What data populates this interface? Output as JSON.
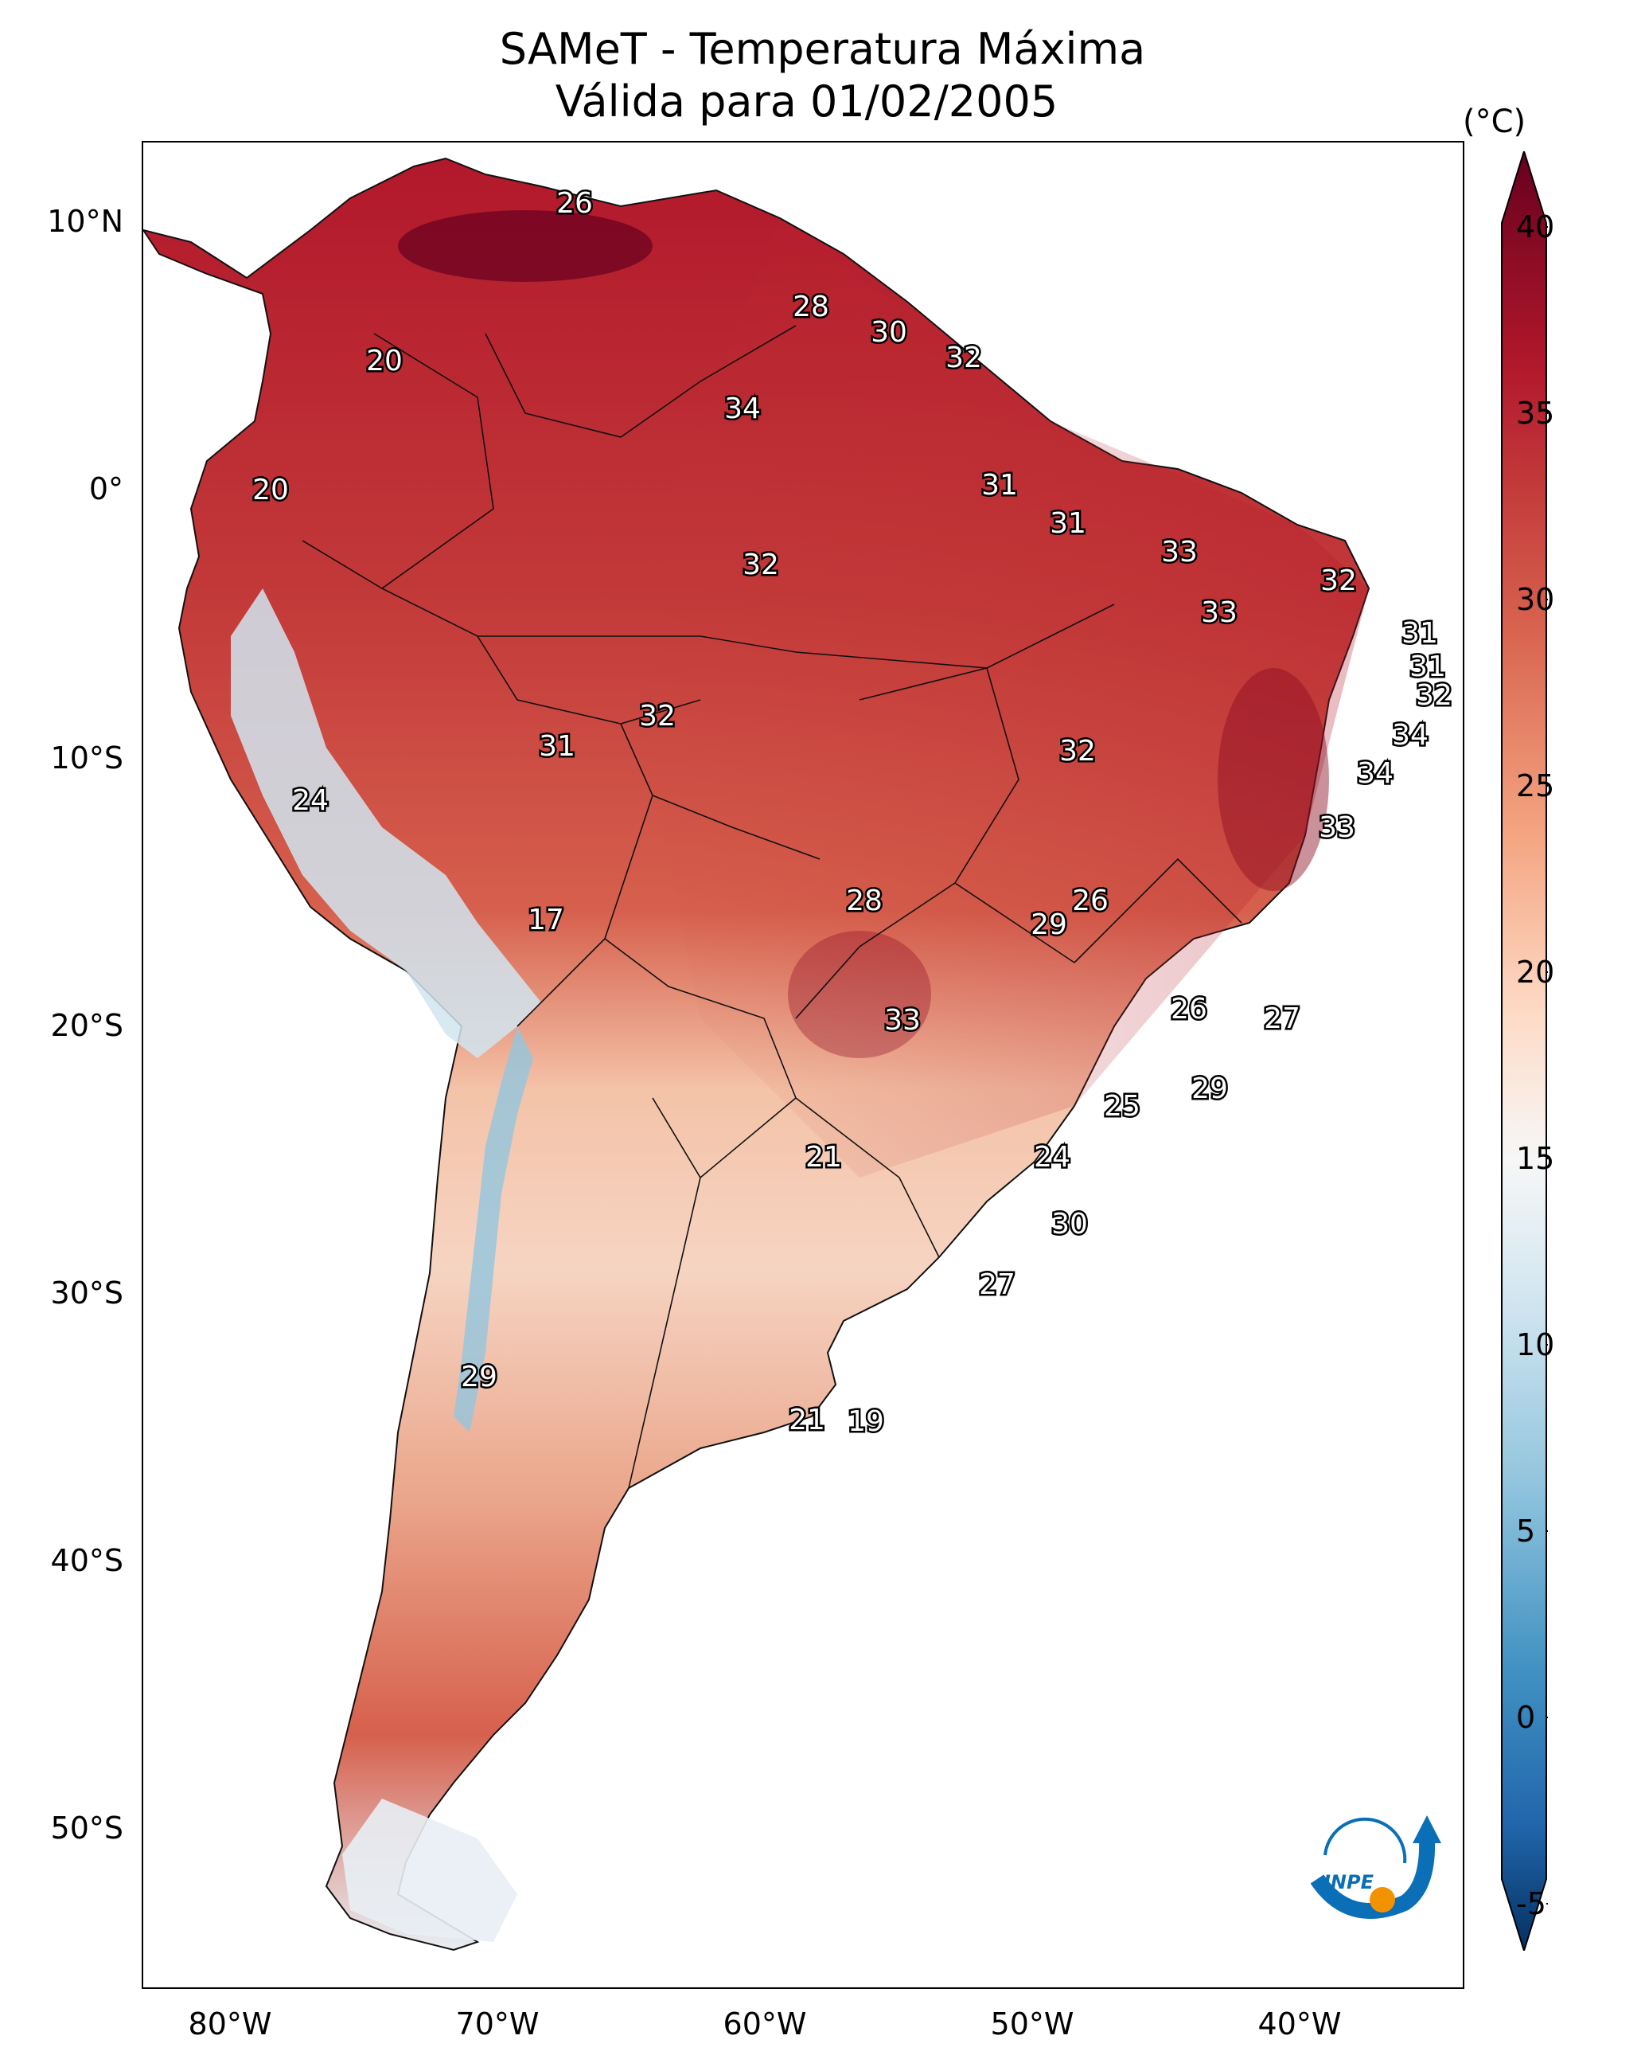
{
  "title": {
    "line1": "SAMeT - Temperatura Máxima",
    "line2": "Válida para 01/02/2005"
  },
  "colorbar": {
    "unit": "(°C)",
    "ticks": [
      "40",
      "35",
      "30",
      "25",
      "20",
      "15",
      "10",
      "5",
      "0",
      "-5"
    ],
    "colormap": "RdBu_r",
    "colors": {
      "high": "#67001f",
      "mid": "#f7f7f7",
      "low": "#053061"
    }
  },
  "axes": {
    "lat_labels": [
      "10°N",
      "0°",
      "10°S",
      "20°S",
      "30°S",
      "40°S",
      "50°S"
    ],
    "lon_labels": [
      "80°W",
      "70°W",
      "60°W",
      "50°W",
      "40°W"
    ]
  },
  "city_values": [
    "26",
    "28",
    "30",
    "32",
    "20",
    "34",
    "20",
    "31",
    "31",
    "33",
    "32",
    "32",
    "33",
    "31",
    "31",
    "32",
    "32",
    "34",
    "31",
    "32",
    "24",
    "34",
    "33",
    "17",
    "28",
    "26",
    "29",
    "26",
    "27",
    "33",
    "29",
    "25",
    "21",
    "24",
    "30",
    "27",
    "29",
    "21",
    "19"
  ],
  "logo": {
    "text": "INPE"
  }
}
